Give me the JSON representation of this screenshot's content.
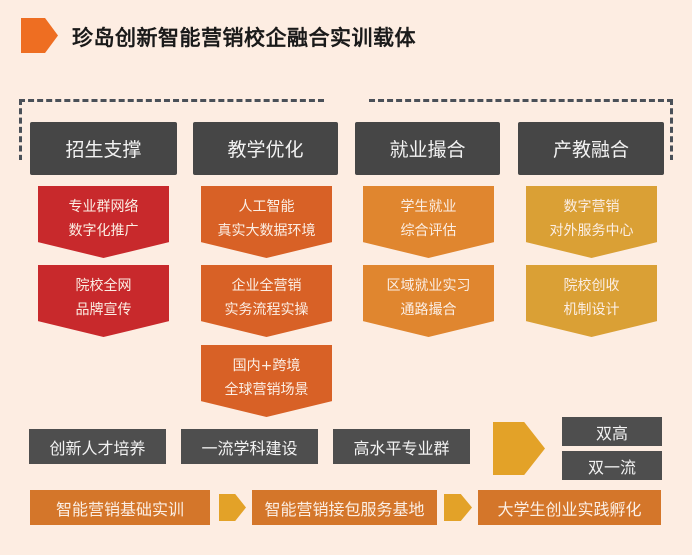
{
  "title": "珍岛创新智能营销校企融合实训载体",
  "columns": [
    {
      "header": "招生支撑",
      "color": "#c8292c",
      "items": [
        [
          "专业群网络",
          "数字化推广"
        ],
        [
          "院校全网",
          "品牌宣传"
        ]
      ]
    },
    {
      "header": "教学优化",
      "color": "#d86126",
      "items": [
        [
          "人工智能",
          "真实大数据环境"
        ],
        [
          "企业全营销",
          "实务流程实操"
        ],
        [
          "国内+跨境",
          "全球营销场景"
        ]
      ]
    },
    {
      "header": "就业撮合",
      "color": "#e0862f",
      "items": [
        [
          "学生就业",
          "综合评估"
        ],
        [
          "区域就业实习",
          "通路撮合"
        ]
      ]
    },
    {
      "header": "产教融合",
      "color": "#daa035",
      "items": [
        [
          "数字营销",
          "对外服务中心"
        ],
        [
          "院校创收",
          "机制设计"
        ]
      ]
    }
  ],
  "outcomes": [
    "创新人才培养",
    "一流学科建设",
    "高水平专业群"
  ],
  "goals": [
    "双高",
    "双一流"
  ],
  "pipeline": [
    "智能营销基础实训",
    "智能营销接包服务基地",
    "大学生创业实践孵化"
  ]
}
